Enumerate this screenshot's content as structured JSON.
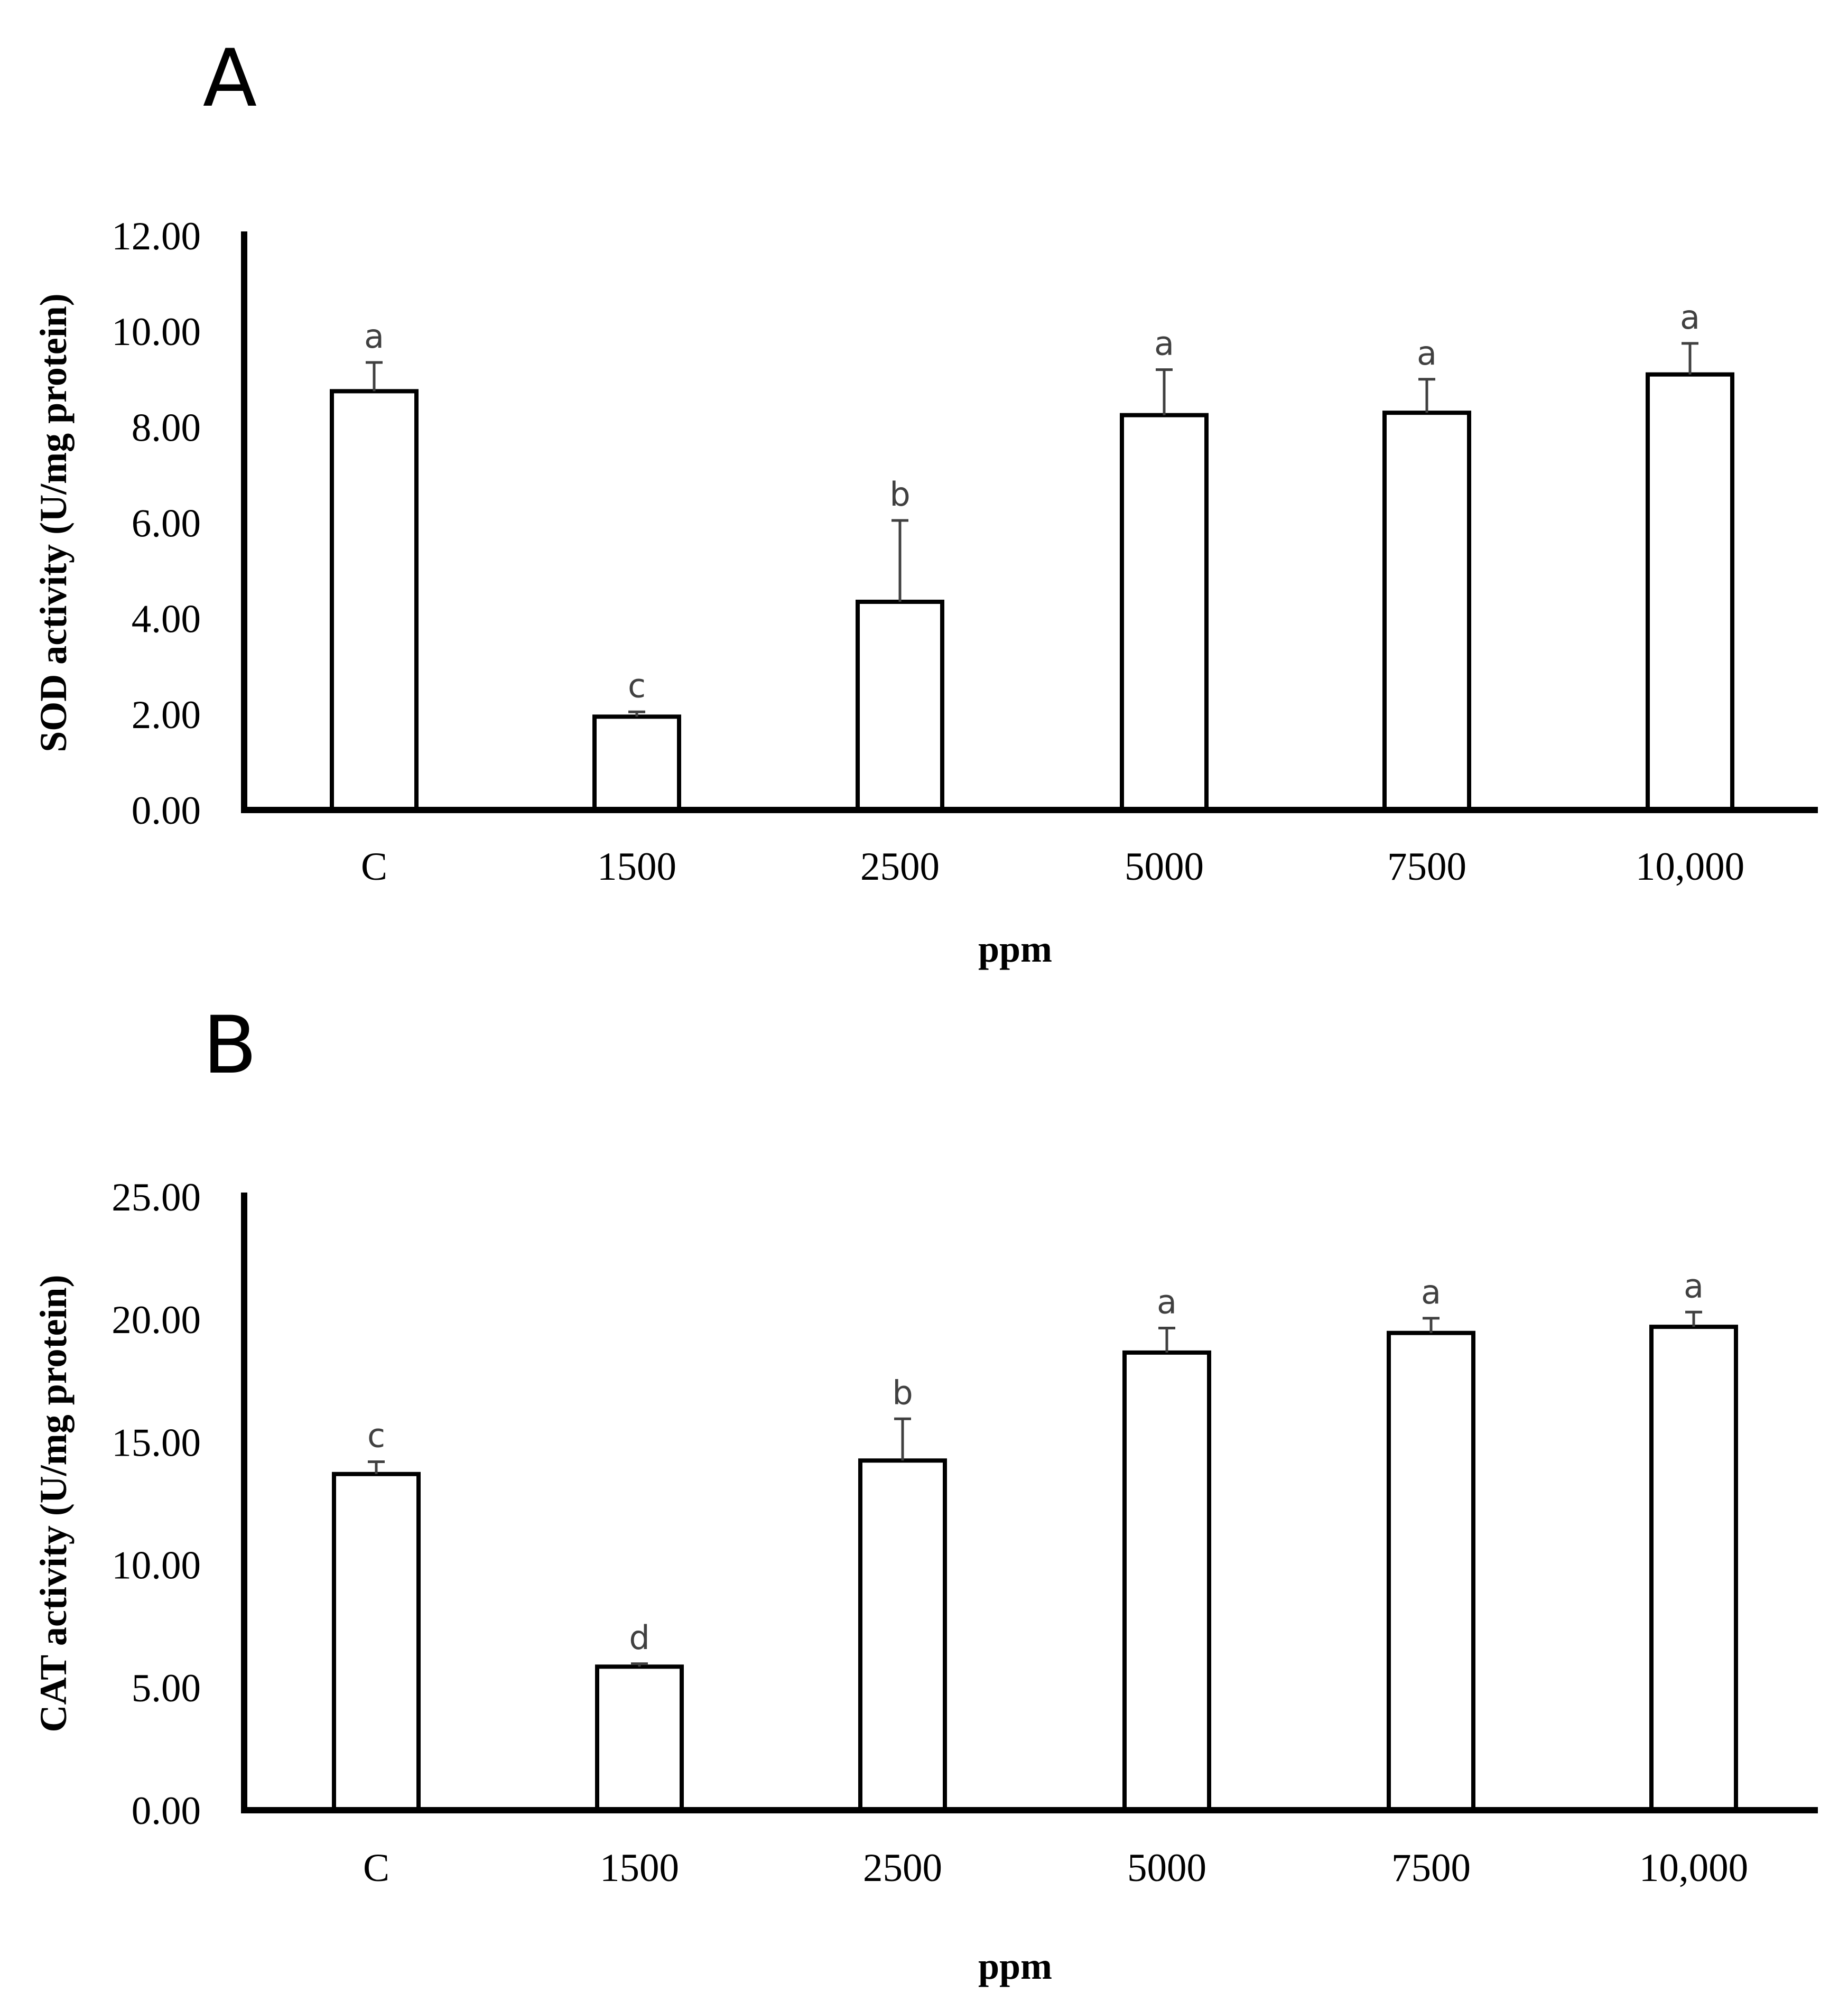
{
  "chart_data": [
    {
      "panel_label": "A",
      "type": "bar",
      "title": "",
      "xlabel": "ppm",
      "ylabel": "SOD activity (U/mg protein)",
      "categories": [
        "C",
        "1500",
        "2500",
        "5000",
        "7500",
        "10,000"
      ],
      "values": [
        8.75,
        1.95,
        4.35,
        8.25,
        8.3,
        9.1
      ],
      "errors": [
        0.6,
        0.1,
        1.7,
        0.95,
        0.7,
        0.65
      ],
      "significance": [
        "a",
        "c",
        "b",
        "a",
        "a",
        "a"
      ],
      "ylim": [
        0,
        12
      ],
      "yticks": [
        "0.00",
        "2.00",
        "4.00",
        "6.00",
        "8.00",
        "10.00",
        "12.00"
      ],
      "grid": false
    },
    {
      "panel_label": "B",
      "type": "bar",
      "title": "",
      "xlabel": "ppm",
      "ylabel": "CAT activity (U/mg protein)",
      "categories": [
        "C",
        "1500",
        "2500",
        "5000",
        "7500",
        "10,000"
      ],
      "values": [
        13.7,
        5.85,
        14.25,
        18.65,
        19.45,
        19.7
      ],
      "errors": [
        0.5,
        0.12,
        1.7,
        1.0,
        0.6,
        0.6
      ],
      "significance": [
        "c",
        "d",
        "b",
        "a",
        "a",
        "a"
      ],
      "ylim": [
        0,
        25
      ],
      "yticks": [
        "0.00",
        "5.00",
        "10.00",
        "15.00",
        "20.00",
        "25.00"
      ],
      "grid": false
    }
  ]
}
